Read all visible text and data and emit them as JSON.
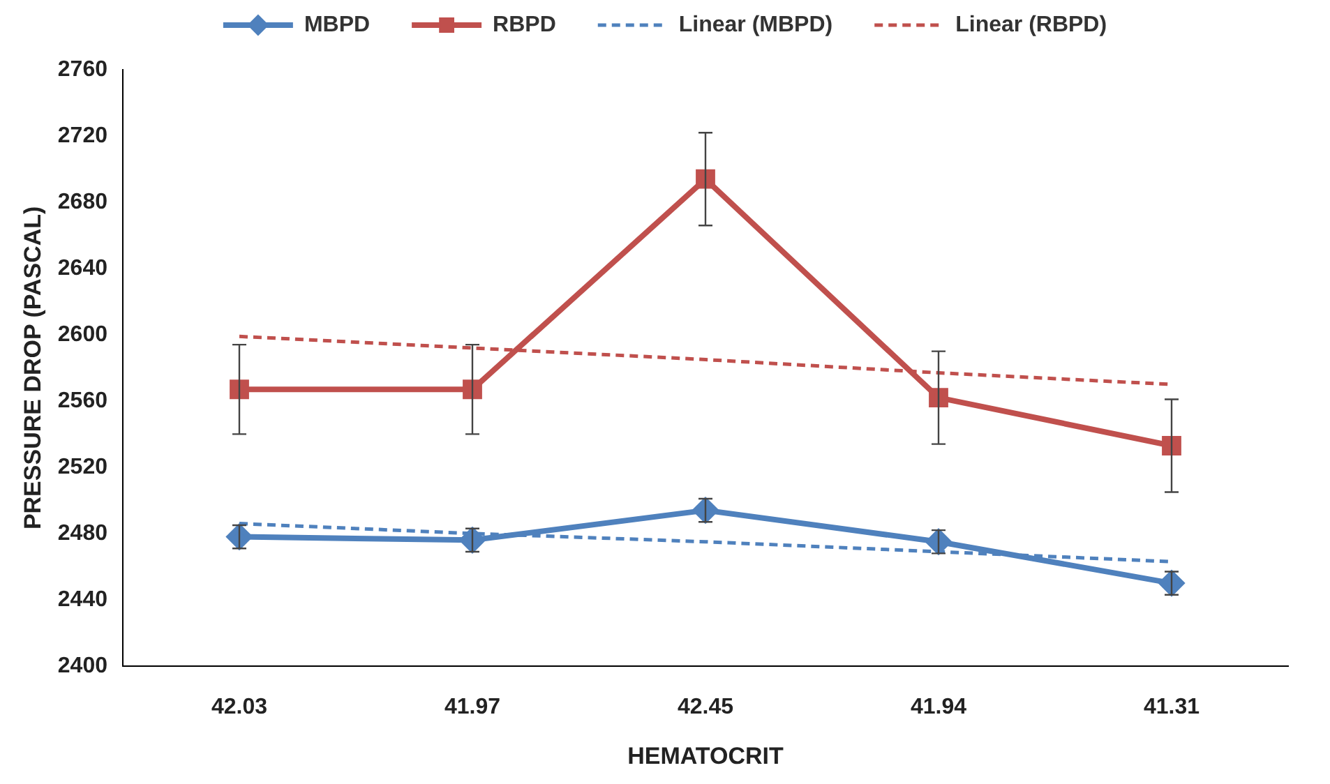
{
  "chart_data": {
    "type": "line",
    "xlabel": "HEMATOCRIT",
    "ylabel": "PRESSURE DROP (PASCAL)",
    "categories": [
      "42.03",
      "41.97",
      "42.45",
      "41.94",
      "41.31"
    ],
    "ylim": [
      2400,
      2760
    ],
    "yticks": [
      2400,
      2440,
      2480,
      2520,
      2560,
      2600,
      2640,
      2680,
      2720,
      2760
    ],
    "grid": false,
    "legend": "top",
    "series": [
      {
        "name": "MBPD",
        "color": "#4f81bd",
        "marker": "diamond",
        "line_style": "solid",
        "values": [
          2478,
          2476,
          2494,
          2475,
          2450
        ],
        "errors": [
          7,
          7,
          7,
          7,
          7
        ]
      },
      {
        "name": "RBPD",
        "color": "#c0504d",
        "marker": "square",
        "line_style": "solid",
        "values": [
          2567,
          2567,
          2694,
          2562,
          2533
        ],
        "errors": [
          27,
          27,
          28,
          28,
          28
        ]
      },
      {
        "name": "Linear (MBPD)",
        "color": "#4f81bd",
        "marker": "none",
        "line_style": "dashed",
        "values": [
          2486,
          2480,
          2475,
          2469,
          2463
        ]
      },
      {
        "name": "Linear (RBPD)",
        "color": "#c0504d",
        "marker": "none",
        "line_style": "dashed",
        "values": [
          2599,
          2592,
          2585,
          2577,
          2570
        ]
      }
    ]
  }
}
